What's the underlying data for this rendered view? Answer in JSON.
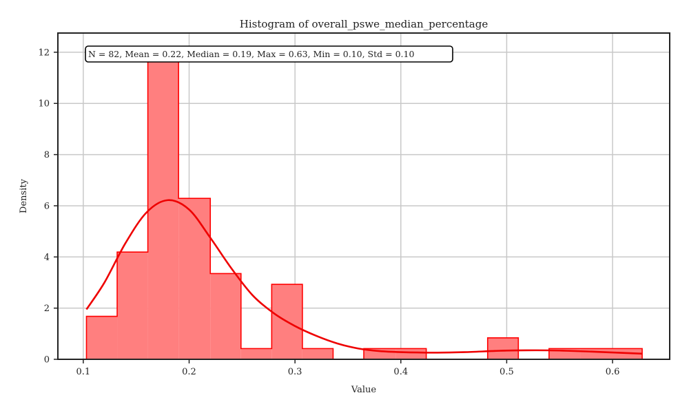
{
  "chart_data": {
    "type": "bar",
    "title": "Histogram of overall_pswe_median_percentage",
    "xlabel": "Value",
    "ylabel": "Density",
    "xlim": [
      0.076,
      0.654
    ],
    "ylim": [
      0,
      12.75
    ],
    "xticks": [
      0.1,
      0.2,
      0.3,
      0.4,
      0.5,
      0.6
    ],
    "xtick_labels": [
      "0.1",
      "0.2",
      "0.3",
      "0.4",
      "0.5",
      "0.6"
    ],
    "yticks": [
      0,
      2,
      4,
      6,
      8,
      10,
      12
    ],
    "ytick_labels": [
      "0",
      "2",
      "4",
      "6",
      "8",
      "10",
      "12"
    ],
    "grid": true,
    "annotation": "N = 82, Mean = 0.22, Median = 0.19, Max = 0.63, Min = 0.10, Std = 0.10",
    "bins": [
      {
        "x0": 0.103,
        "x1": 0.132,
        "value": 1.68
      },
      {
        "x0": 0.132,
        "x1": 0.161,
        "value": 4.19
      },
      {
        "x0": 0.161,
        "x1": 0.19,
        "value": 11.73
      },
      {
        "x0": 0.19,
        "x1": 0.22,
        "value": 6.29
      },
      {
        "x0": 0.22,
        "x1": 0.249,
        "value": 3.35
      },
      {
        "x0": 0.249,
        "x1": 0.278,
        "value": 0.42
      },
      {
        "x0": 0.278,
        "x1": 0.307,
        "value": 2.93
      },
      {
        "x0": 0.307,
        "x1": 0.336,
        "value": 0.42
      },
      {
        "x0": 0.336,
        "x1": 0.365,
        "value": 0
      },
      {
        "x0": 0.365,
        "x1": 0.395,
        "value": 0.42
      },
      {
        "x0": 0.395,
        "x1": 0.424,
        "value": 0.42
      },
      {
        "x0": 0.424,
        "x1": 0.453,
        "value": 0
      },
      {
        "x0": 0.453,
        "x1": 0.482,
        "value": 0
      },
      {
        "x0": 0.482,
        "x1": 0.511,
        "value": 0.84
      },
      {
        "x0": 0.511,
        "x1": 0.54,
        "value": 0
      },
      {
        "x0": 0.54,
        "x1": 0.57,
        "value": 0.42
      },
      {
        "x0": 0.57,
        "x1": 0.599,
        "value": 0.42
      },
      {
        "x0": 0.599,
        "x1": 0.628,
        "value": 0.42
      }
    ],
    "kde": {
      "x": [
        0.103,
        0.12,
        0.14,
        0.16,
        0.18,
        0.2,
        0.22,
        0.24,
        0.26,
        0.28,
        0.3,
        0.32,
        0.34,
        0.36,
        0.38,
        0.4,
        0.43,
        0.46,
        0.5,
        0.54,
        0.58,
        0.628
      ],
      "y": [
        1.95,
        3.0,
        4.55,
        5.75,
        6.22,
        5.85,
        4.75,
        3.55,
        2.5,
        1.8,
        1.3,
        0.92,
        0.62,
        0.42,
        0.32,
        0.28,
        0.26,
        0.28,
        0.34,
        0.35,
        0.3,
        0.22
      ]
    },
    "colors": {
      "bar_fill": "#ff7f7f",
      "bar_edge": "#ff0000",
      "kde_line": "#ee0000",
      "grid": "#c8c8c8",
      "axes": "#222222"
    }
  }
}
